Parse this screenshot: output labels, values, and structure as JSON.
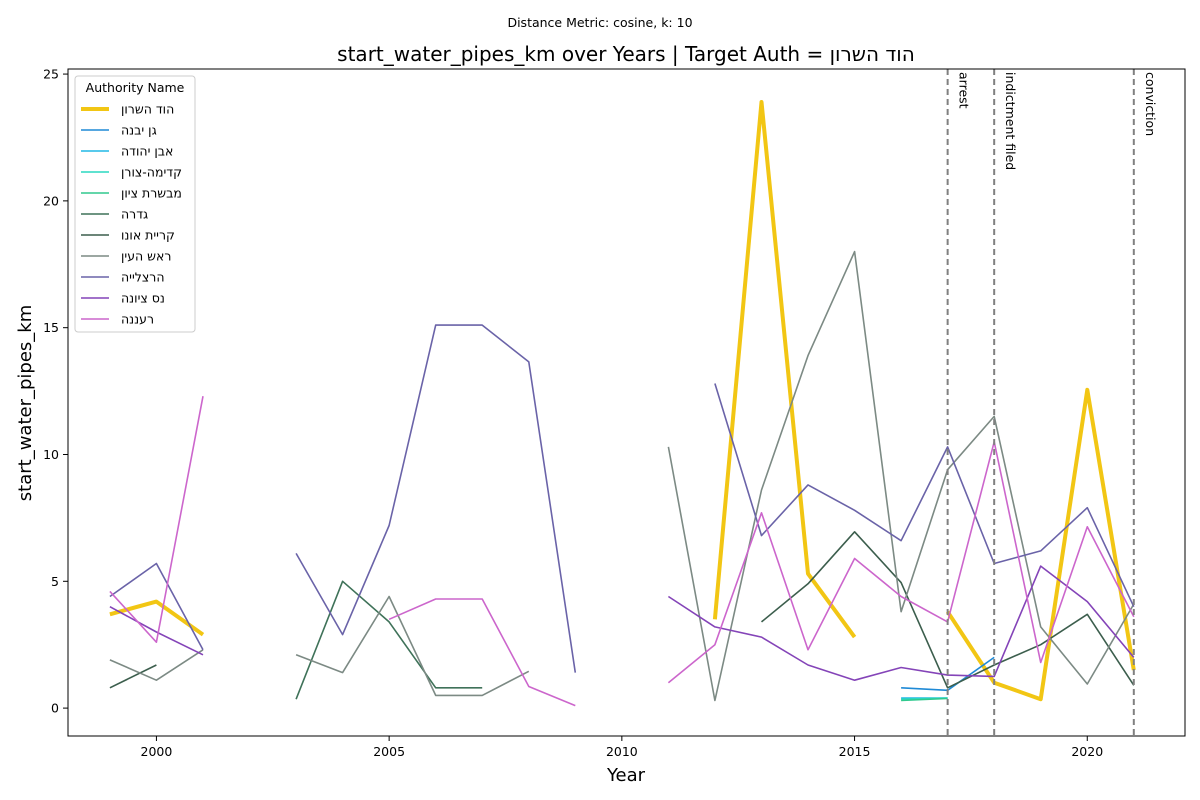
{
  "figure": {
    "suptitle": "Distance Metric: cosine, k: 10"
  },
  "chart_data": {
    "type": "line",
    "title": "start_water_pipes_km over Years | Target Auth = הוד השרון",
    "xlabel": "Year",
    "ylabel": "start_water_pipes_km",
    "xlim": [
      1998.1,
      2022.1
    ],
    "ylim": [
      -1.1,
      25.2
    ],
    "xticks": [
      2000,
      2005,
      2010,
      2015,
      2020
    ],
    "yticks": [
      0,
      5,
      10,
      15,
      20,
      25
    ],
    "grid": false,
    "legend": {
      "title": "Authority Name",
      "placement": "upper-left"
    },
    "series": [
      {
        "name": "הוד השרון",
        "color": "#f2c614",
        "width": 4,
        "segments": [
          [
            [
              1999,
              3.7
            ],
            [
              2000,
              4.2
            ],
            [
              2001,
              2.9
            ]
          ],
          [
            [
              2012,
              3.5
            ],
            [
              2013,
              23.9
            ],
            [
              2014,
              5.3
            ],
            [
              2015,
              2.8
            ]
          ],
          [
            [
              2017,
              3.8
            ],
            [
              2018,
              1.0
            ],
            [
              2019,
              0.35
            ],
            [
              2020,
              12.55
            ],
            [
              2021,
              1.5
            ]
          ]
        ]
      },
      {
        "name": "גן יבנה",
        "color": "#1f8ad6",
        "width": 1.6,
        "segments": [
          [
            [
              2016,
              0.8
            ],
            [
              2017,
              0.7
            ],
            [
              2018,
              2.0
            ]
          ]
        ]
      },
      {
        "name": "אבן יהודה",
        "color": "#21b8e6",
        "width": 1.6,
        "segments": [
          [
            [
              2016,
              0.4
            ],
            [
              2017,
              0.4
            ]
          ]
        ]
      },
      {
        "name": "קדימה-צורן",
        "color": "#2ad8c0",
        "width": 1.6,
        "segments": [
          [
            [
              2016,
              0.35
            ],
            [
              2017,
              0.4
            ]
          ]
        ]
      },
      {
        "name": "מבשרת ציון",
        "color": "#30c98e",
        "width": 1.6,
        "segments": [
          [
            [
              2016,
              0.3
            ],
            [
              2017,
              0.38
            ]
          ]
        ]
      },
      {
        "name": "גדרה",
        "color": "#3f7259",
        "width": 1.6,
        "segments": [
          [
            [
              2003,
              0.35
            ],
            [
              2004,
              5.0
            ],
            [
              2005,
              3.4
            ],
            [
              2006,
              0.8
            ],
            [
              2007,
              0.8
            ]
          ]
        ]
      },
      {
        "name": "קריית אונו",
        "color": "#3c5e4d",
        "width": 1.6,
        "segments": [
          [
            [
              1999,
              0.8
            ],
            [
              2000,
              1.7
            ]
          ],
          [
            [
              2013,
              3.4
            ],
            [
              2014,
              4.9
            ],
            [
              2015,
              6.95
            ],
            [
              2016,
              4.95
            ],
            [
              2017,
              0.8
            ],
            [
              2018,
              1.7
            ],
            [
              2019,
              2.5
            ],
            [
              2020,
              3.7
            ],
            [
              2021,
              0.9
            ]
          ]
        ]
      },
      {
        "name": "ראש העין",
        "color": "#7c8a84",
        "width": 1.6,
        "segments": [
          [
            [
              1999,
              1.9
            ],
            [
              2000,
              1.1
            ],
            [
              2001,
              2.3
            ]
          ],
          [
            [
              2003,
              2.1
            ],
            [
              2004,
              1.4
            ],
            [
              2005,
              4.4
            ],
            [
              2006,
              0.5
            ],
            [
              2007,
              0.5
            ],
            [
              2008,
              1.45
            ]
          ],
          [
            [
              2011,
              10.3
            ],
            [
              2012,
              0.3
            ],
            [
              2013,
              8.6
            ],
            [
              2014,
              13.9
            ],
            [
              2015,
              18.0
            ],
            [
              2016,
              3.8
            ],
            [
              2017,
              9.4
            ],
            [
              2018,
              11.5
            ],
            [
              2019,
              3.2
            ],
            [
              2020,
              0.95
            ],
            [
              2021,
              4.1
            ]
          ]
        ]
      },
      {
        "name": "הרצלייה",
        "color": "#6a63a8",
        "width": 1.6,
        "segments": [
          [
            [
              1999,
              4.4
            ],
            [
              2000,
              5.7
            ],
            [
              2001,
              2.3
            ]
          ],
          [
            [
              2003,
              6.1
            ],
            [
              2004,
              2.9
            ],
            [
              2005,
              7.2
            ],
            [
              2006,
              15.1
            ],
            [
              2007,
              15.1
            ],
            [
              2008,
              13.65
            ],
            [
              2009,
              1.4
            ]
          ],
          [
            [
              2012,
              12.8
            ],
            [
              2013,
              6.8
            ],
            [
              2014,
              8.8
            ],
            [
              2015,
              7.8
            ],
            [
              2016,
              6.6
            ],
            [
              2017,
              10.3
            ],
            [
              2018,
              5.7
            ],
            [
              2019,
              6.2
            ],
            [
              2020,
              7.9
            ],
            [
              2021,
              4.0
            ]
          ]
        ]
      },
      {
        "name": "נס ציונה",
        "color": "#8444b8",
        "width": 1.6,
        "segments": [
          [
            [
              1999,
              4.0
            ],
            [
              2000,
              3.0
            ],
            [
              2001,
              2.1
            ]
          ],
          [
            [
              2011,
              4.4
            ],
            [
              2012,
              3.2
            ],
            [
              2013,
              2.8
            ],
            [
              2014,
              1.7
            ],
            [
              2015,
              1.1
            ],
            [
              2016,
              1.6
            ],
            [
              2017,
              1.3
            ],
            [
              2018,
              1.25
            ],
            [
              2019,
              5.6
            ],
            [
              2020,
              4.2
            ],
            [
              2021,
              2.0
            ]
          ]
        ]
      },
      {
        "name": "רעננה",
        "color": "#cc66cc",
        "width": 1.6,
        "segments": [
          [
            [
              1999,
              4.6
            ],
            [
              2000,
              2.6
            ],
            [
              2001,
              12.3
            ]
          ],
          [
            [
              2005,
              3.5
            ],
            [
              2006,
              4.3
            ],
            [
              2007,
              4.3
            ],
            [
              2008,
              0.85
            ],
            [
              2009,
              0.1
            ]
          ],
          [
            [
              2011,
              1.0
            ],
            [
              2012,
              2.5
            ],
            [
              2013,
              7.7
            ],
            [
              2014,
              2.3
            ],
            [
              2015,
              5.9
            ],
            [
              2016,
              4.4
            ],
            [
              2017,
              3.4
            ],
            [
              2018,
              10.5
            ],
            [
              2019,
              1.8
            ],
            [
              2020,
              7.15
            ],
            [
              2021,
              3.6
            ]
          ]
        ]
      }
    ],
    "events": [
      {
        "year": 2017,
        "label": "arrest"
      },
      {
        "year": 2018,
        "label": "indictment filed"
      },
      {
        "year": 2021,
        "label": "conviction"
      }
    ]
  }
}
